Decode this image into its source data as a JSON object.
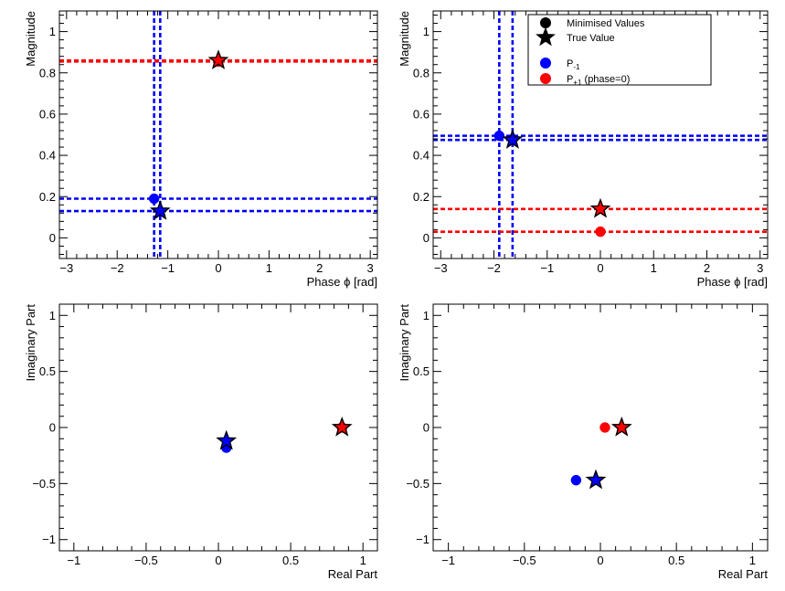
{
  "chart_data": [
    {
      "type": "scatter",
      "panel": "magnitude-phase",
      "title": "",
      "xlabel": "Phase ϕ [rad]",
      "ylabel": "Magnitude",
      "xlim": [
        -3.14159,
        3.14159
      ],
      "ylim": [
        -0.1,
        1.1
      ],
      "x_ticks": [
        -3,
        -2,
        -1,
        0,
        1,
        2,
        3
      ],
      "y_ticks": [
        0,
        0.2,
        0.4,
        0.6,
        0.8,
        1
      ],
      "grid": false,
      "series": [
        {
          "color": "#0000ff",
          "minimised": {
            "x": -1.27,
            "y": 0.19
          },
          "true": {
            "x": -1.15,
            "y": 0.13
          }
        },
        {
          "color": "#ff0000",
          "minimised": {
            "x": 0.0,
            "y": 0.855
          },
          "true": {
            "x": 0.0,
            "y": 0.86
          }
        }
      ],
      "reference_lines": [
        {
          "orientation": "vertical",
          "value": -1.27,
          "color": "#0000ff"
        },
        {
          "orientation": "vertical",
          "value": -1.15,
          "color": "#0000ff"
        },
        {
          "orientation": "horizontal",
          "value": 0.19,
          "color": "#0000ff"
        },
        {
          "orientation": "horizontal",
          "value": 0.13,
          "color": "#0000ff"
        },
        {
          "orientation": "horizontal",
          "value": 0.855,
          "color": "#ff0000"
        },
        {
          "orientation": "horizontal",
          "value": 0.86,
          "color": "#ff0000"
        }
      ]
    },
    {
      "type": "scatter",
      "panel": "magnitude-phase",
      "title": "",
      "xlabel": "Phase ϕ [rad]",
      "ylabel": "Magnitude",
      "xlim": [
        -3.14159,
        3.14159
      ],
      "ylim": [
        -0.1,
        1.1
      ],
      "x_ticks": [
        -3,
        -2,
        -1,
        0,
        1,
        2,
        3
      ],
      "y_ticks": [
        0,
        0.2,
        0.4,
        0.6,
        0.8,
        1
      ],
      "grid": false,
      "legend": {
        "placement": "top-right",
        "entries": [
          {
            "label": "Minimised Values",
            "marker": "circle",
            "color": "#000000"
          },
          {
            "label": "True Value",
            "marker": "star",
            "color": "#000000"
          },
          {
            "label": "P",
            "sub": "-1",
            "marker": "circle",
            "color": "#0000ff"
          },
          {
            "label": "P",
            "sub": "+1",
            "suffix": " (phase=0)",
            "marker": "circle",
            "color": "#ff0000"
          }
        ]
      },
      "series": [
        {
          "color": "#0000ff",
          "minimised": {
            "x": -1.9,
            "y": 0.495
          },
          "true": {
            "x": -1.65,
            "y": 0.475
          }
        },
        {
          "color": "#ff0000",
          "minimised": {
            "x": 0.0,
            "y": 0.03
          },
          "true": {
            "x": 0.0,
            "y": 0.14
          }
        }
      ],
      "reference_lines": [
        {
          "orientation": "vertical",
          "value": -1.9,
          "color": "#0000ff"
        },
        {
          "orientation": "vertical",
          "value": -1.65,
          "color": "#0000ff"
        },
        {
          "orientation": "horizontal",
          "value": 0.495,
          "color": "#0000ff"
        },
        {
          "orientation": "horizontal",
          "value": 0.475,
          "color": "#0000ff"
        },
        {
          "orientation": "horizontal",
          "value": 0.14,
          "color": "#ff0000"
        },
        {
          "orientation": "horizontal",
          "value": 0.03,
          "color": "#ff0000"
        }
      ]
    },
    {
      "type": "scatter",
      "panel": "complex-plane",
      "title": "",
      "xlabel": "Real Part",
      "ylabel": "Imaginary Part",
      "xlim": [
        -1.1,
        1.1
      ],
      "ylim": [
        -1.1,
        1.1
      ],
      "x_ticks": [
        -1,
        -0.5,
        0,
        0.5,
        1
      ],
      "y_ticks": [
        -1,
        -0.5,
        0,
        0.5,
        1
      ],
      "grid": false,
      "series": [
        {
          "color": "#0000ff",
          "minimised": {
            "x": 0.055,
            "y": -0.18
          },
          "true": {
            "x": 0.055,
            "y": -0.12
          }
        },
        {
          "color": "#ff0000",
          "minimised": {
            "x": 0.855,
            "y": 0.0
          },
          "true": {
            "x": 0.855,
            "y": 0.0
          }
        }
      ]
    },
    {
      "type": "scatter",
      "panel": "complex-plane",
      "title": "",
      "xlabel": "Real Part",
      "ylabel": "Imaginary Part",
      "xlim": [
        -1.1,
        1.1
      ],
      "ylim": [
        -1.1,
        1.1
      ],
      "x_ticks": [
        -1,
        -0.5,
        0,
        0.5,
        1
      ],
      "y_ticks": [
        -1,
        -0.5,
        0,
        0.5,
        1
      ],
      "grid": false,
      "series": [
        {
          "color": "#0000ff",
          "minimised": {
            "x": -0.16,
            "y": -0.47
          },
          "true": {
            "x": -0.03,
            "y": -0.47
          }
        },
        {
          "color": "#ff0000",
          "minimised": {
            "x": 0.03,
            "y": 0.0
          },
          "true": {
            "x": 0.14,
            "y": 0.0
          }
        }
      ]
    }
  ]
}
